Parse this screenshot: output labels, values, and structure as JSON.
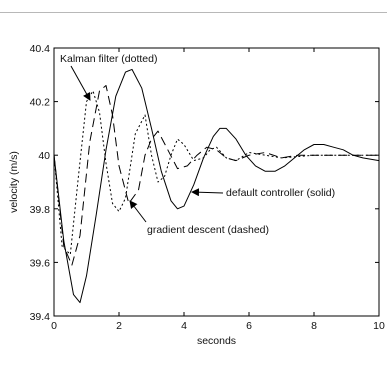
{
  "chart_data": {
    "type": "line",
    "title": "",
    "xlabel": "seconds",
    "ylabel": "velocity (m/s)",
    "xlim": [
      0,
      10
    ],
    "ylim": [
      39.4,
      40.4
    ],
    "xticks": [
      "0",
      "2",
      "4",
      "6",
      "8",
      "10"
    ],
    "yticks": [
      "39.4",
      "39.6",
      "39.8",
      "40",
      "40.2",
      "40.4"
    ],
    "grid": false,
    "series": [
      {
        "name": "default controller (solid)",
        "style": "solid",
        "x": [
          0,
          0.3,
          0.6,
          0.8,
          1.0,
          1.3,
          1.6,
          1.9,
          2.2,
          2.4,
          2.7,
          3.0,
          3.3,
          3.6,
          3.8,
          4.0,
          4.3,
          4.6,
          4.9,
          5.1,
          5.3,
          5.6,
          5.9,
          6.2,
          6.5,
          6.8,
          7.1,
          7.4,
          7.7,
          8.0,
          8.3,
          8.6,
          8.9,
          9.2,
          9.5,
          10.0
        ],
        "y": [
          40.0,
          39.68,
          39.48,
          39.45,
          39.55,
          39.78,
          40.02,
          40.22,
          40.31,
          40.32,
          40.25,
          40.1,
          39.94,
          39.83,
          39.8,
          39.81,
          39.89,
          39.99,
          40.07,
          40.1,
          40.1,
          40.06,
          40.0,
          39.96,
          39.94,
          39.94,
          39.96,
          39.99,
          40.02,
          40.04,
          40.04,
          40.03,
          40.02,
          40.0,
          39.99,
          39.98
        ]
      },
      {
        "name": "gradient descent (dashed)",
        "style": "dashed",
        "x": [
          0,
          0.3,
          0.55,
          0.8,
          1.1,
          1.4,
          1.6,
          1.8,
          2.0,
          2.3,
          2.6,
          2.8,
          3.0,
          3.2,
          3.5,
          3.8,
          4.1,
          4.4,
          4.7,
          5.0,
          5.3,
          5.6,
          6.0,
          6.5,
          7.0,
          7.5,
          8.0,
          9.0,
          10.0
        ],
        "y": [
          40.0,
          39.66,
          39.59,
          39.7,
          40.05,
          40.24,
          40.26,
          40.15,
          39.96,
          39.82,
          39.87,
          40.0,
          40.06,
          40.09,
          40.02,
          39.95,
          39.96,
          40.0,
          40.03,
          40.02,
          39.99,
          39.98,
          40.0,
          40.01,
          39.99,
          40.0,
          40.0,
          40.0,
          40.0
        ]
      },
      {
        "name": "Kalman filter (dotted)",
        "style": "dotted",
        "x": [
          0,
          0.25,
          0.5,
          0.75,
          1.0,
          1.2,
          1.4,
          1.6,
          1.8,
          2.0,
          2.2,
          2.5,
          2.8,
          3.0,
          3.2,
          3.4,
          3.6,
          3.8,
          4.0,
          4.3,
          4.6,
          4.8,
          5.0,
          5.3,
          5.6,
          6.0,
          6.5,
          7.0,
          8.0,
          9.0,
          10.0
        ],
        "y": [
          40.0,
          39.66,
          39.63,
          39.92,
          40.2,
          40.24,
          40.16,
          39.97,
          39.82,
          39.79,
          39.84,
          40.08,
          40.15,
          40.0,
          39.9,
          39.92,
          40.0,
          40.06,
          40.04,
          39.98,
          39.99,
          40.02,
          40.03,
          39.99,
          39.98,
          40.01,
          40.0,
          39.99,
          40.0,
          40.0,
          40.0
        ]
      }
    ],
    "annotations": [
      {
        "text": "Kalman filter (dotted)",
        "target_series": "Kalman filter (dotted)"
      },
      {
        "text": "default controller (solid)",
        "target_series": "default controller (solid)"
      },
      {
        "text": "gradient descent (dashed)",
        "target_series": "gradient descent (dashed)"
      }
    ]
  }
}
